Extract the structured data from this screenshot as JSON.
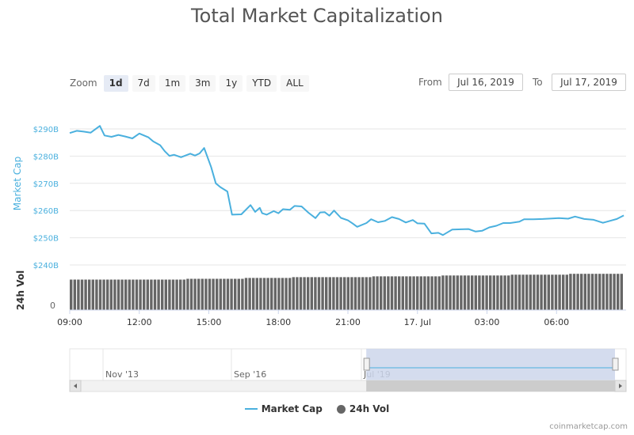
{
  "title": "Total Market Capitalization",
  "zoom": {
    "label": "Zoom",
    "buttons": [
      "1d",
      "7d",
      "1m",
      "3m",
      "1y",
      "YTD",
      "ALL"
    ],
    "active": "1d"
  },
  "range": {
    "from_label": "From",
    "from_value": "Jul 16, 2019",
    "to_label": "To",
    "to_value": "Jul 17, 2019"
  },
  "legend": {
    "market_cap": "Market Cap",
    "volume": "24h Vol"
  },
  "credit": "coinmarketcap.com",
  "colors": {
    "line": "#4ab0de",
    "volume": "#666666",
    "navigator_fill": "#ccd6eb"
  },
  "chart_data": {
    "type": "line",
    "x_ticks": [
      "09:00",
      "12:00",
      "15:00",
      "18:00",
      "21:00",
      "17. Jul",
      "03:00",
      "06:00"
    ],
    "y_ticks": [
      "$240B",
      "$250B",
      "$260B",
      "$270B",
      "$280B",
      "$290B"
    ],
    "y_tick_values": [
      240,
      250,
      260,
      270,
      280,
      290
    ],
    "ylabel": "Market Cap",
    "ylabel2": "24h Vol",
    "volume_tick": "0",
    "ylim": [
      240,
      290
    ],
    "x_hours": [
      0,
      0.3,
      0.6,
      0.9,
      1.3,
      1.5,
      1.8,
      2.1,
      2.4,
      2.7,
      3.0,
      3.4,
      3.6,
      3.9,
      4.1,
      4.3,
      4.5,
      4.8,
      5.2,
      5.4,
      5.6,
      5.8,
      6.1,
      6.3,
      6.5,
      6.8,
      7.0,
      7.4,
      7.8,
      8.0,
      8.2,
      8.3,
      8.5,
      8.8,
      9.0,
      9.2,
      9.5,
      9.7,
      10.0,
      10.3,
      10.6,
      10.8,
      11.0,
      11.2,
      11.4,
      11.7,
      12.0,
      12.2,
      12.4,
      12.8,
      13.0,
      13.3,
      13.6,
      13.9,
      14.2,
      14.5,
      14.8,
      15.0,
      15.3,
      15.6,
      15.9,
      16.1,
      16.3,
      16.5,
      16.9,
      17.2,
      17.5,
      17.8,
      18.1,
      18.4,
      18.7,
      19.0,
      19.4,
      19.6,
      20.0,
      20.4,
      20.8,
      21.1,
      21.5,
      21.8,
      22.2,
      22.6,
      23.0,
      23.3,
      23.6,
      23.9
    ],
    "market_cap": [
      288.5,
      289.3,
      289.0,
      288.6,
      291.1,
      287.6,
      287.1,
      287.8,
      287.2,
      286.5,
      288.3,
      286.9,
      285.4,
      284.0,
      281.8,
      280.1,
      280.5,
      279.6,
      280.9,
      280.2,
      281.0,
      283.0,
      276.0,
      270.0,
      268.6,
      267.0,
      258.5,
      258.6,
      262.0,
      259.5,
      261.0,
      259.0,
      258.5,
      259.8,
      259.0,
      260.5,
      260.3,
      261.7,
      261.5,
      259.2,
      257.2,
      259.3,
      259.4,
      258.1,
      260.0,
      257.3,
      256.4,
      255.3,
      254.0,
      255.4,
      256.8,
      255.7,
      256.2,
      257.6,
      256.9,
      255.6,
      256.5,
      255.3,
      255.2,
      251.6,
      251.8,
      251.0,
      252.0,
      253.0,
      253.1,
      253.2,
      252.3,
      252.6,
      253.8,
      254.4,
      255.4,
      255.4,
      255.9,
      256.8,
      256.8,
      256.9,
      257.1,
      257.2,
      257.0,
      257.8,
      256.9,
      256.6,
      255.5,
      256.2,
      256.9,
      258.2
    ],
    "volume_segments": [
      {
        "from_hour": 0,
        "to_hour": 5,
        "level": 0.74
      },
      {
        "from_hour": 5,
        "to_hour": 7.5,
        "level": 0.76
      },
      {
        "from_hour": 7.5,
        "to_hour": 9.5,
        "level": 0.78
      },
      {
        "from_hour": 9.5,
        "to_hour": 13,
        "level": 0.8
      },
      {
        "from_hour": 13,
        "to_hour": 16,
        "level": 0.82
      },
      {
        "from_hour": 16,
        "to_hour": 19,
        "level": 0.84
      },
      {
        "from_hour": 19,
        "to_hour": 21.5,
        "level": 0.86
      },
      {
        "from_hour": 21.5,
        "to_hour": 24,
        "level": 0.88
      }
    ],
    "navigator": {
      "labels": [
        "Nov '13",
        "Sep '16",
        "Jul '19"
      ],
      "selection_start": 0.533,
      "selection_end": 1.0
    },
    "grid": true,
    "legend_position": "bottom-center"
  }
}
